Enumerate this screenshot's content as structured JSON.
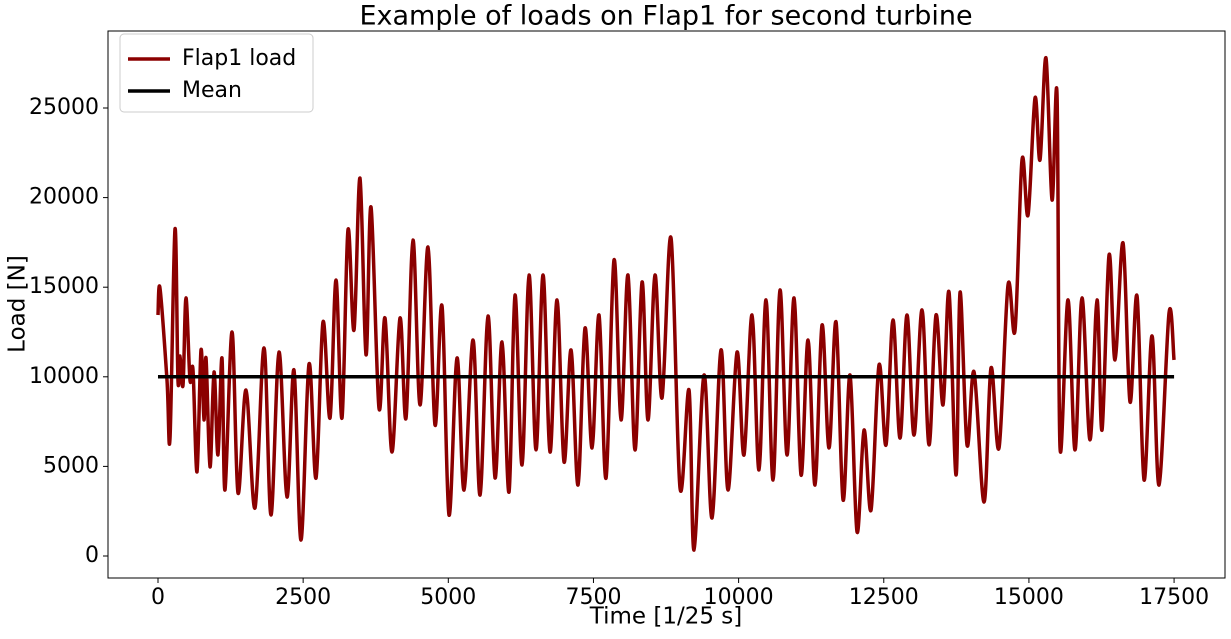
{
  "chart_data": {
    "type": "line",
    "title": "Example of loads on Flap1 for second turbine",
    "xlabel": "Time [1/25 s]",
    "ylabel": "Load [N]",
    "xlim": [
      -861,
      18377
    ],
    "ylim": [
      -1228,
      29297
    ],
    "xticks": [
      0,
      2500,
      5000,
      7500,
      10000,
      12500,
      15000,
      17500
    ],
    "yticks": [
      0,
      5000,
      10000,
      15000,
      20000,
      25000
    ],
    "grid": false,
    "legend": "upper left",
    "series": [
      {
        "name": "Flap1 load",
        "color": "#8b0000",
        "x": [
          0,
          34,
          155,
          207,
          293,
          344,
          379,
          431,
          482,
          551,
          603,
          672,
          741,
          792,
          827,
          896,
          965,
          1033,
          1102,
          1154,
          1275,
          1378,
          1516,
          1671,
          1826,
          1946,
          2084,
          2222,
          2342,
          2463,
          2601,
          2722,
          2842,
          2963,
          3066,
          3169,
          3272,
          3376,
          3479,
          3583,
          3669,
          3806,
          3910,
          4030,
          4168,
          4272,
          4392,
          4513,
          4650,
          4771,
          4892,
          5012,
          5150,
          5271,
          5426,
          5547,
          5684,
          5805,
          5925,
          6046,
          6149,
          6270,
          6391,
          6511,
          6632,
          6752,
          6873,
          6993,
          7114,
          7234,
          7355,
          7476,
          7596,
          7717,
          7854,
          7975,
          8095,
          8216,
          8337,
          8440,
          8560,
          8681,
          8836,
          8991,
          9146,
          9232,
          9404,
          9542,
          9697,
          9818,
          9973,
          10093,
          10231,
          10351,
          10472,
          10593,
          10713,
          10834,
          10955,
          11075,
          11196,
          11316,
          11437,
          11557,
          11678,
          11799,
          11919,
          12040,
          12160,
          12281,
          12418,
          12539,
          12659,
          12780,
          12900,
          13021,
          13159,
          13280,
          13400,
          13521,
          13624,
          13745,
          13814,
          13934,
          14055,
          14227,
          14347,
          14485,
          14640,
          14761,
          14881,
          14985,
          15105,
          15191,
          15294,
          15398,
          15484,
          15536,
          15673,
          15794,
          15914,
          16052,
          16173,
          16259,
          16380,
          16483,
          16621,
          16741,
          16862,
          16983,
          17120,
          17241,
          17413,
          17499
        ],
        "values": [
          13450,
          14950,
          9820,
          6580,
          18250,
          9820,
          11160,
          9540,
          14400,
          9820,
          10380,
          4690,
          11500,
          7590,
          11050,
          4970,
          10270,
          5640,
          11050,
          3680,
          12500,
          3520,
          9260,
          2680,
          11610,
          2290,
          11380,
          3290,
          10380,
          890,
          10710,
          4350,
          13060,
          7700,
          15400,
          7700,
          18190,
          12610,
          21090,
          11220,
          19470,
          8260,
          13280,
          5800,
          13280,
          7700,
          17630,
          8430,
          17240,
          7310,
          13950,
          2290,
          11050,
          3680,
          12050,
          3400,
          13390,
          4350,
          11940,
          3570,
          14560,
          5080,
          15680,
          5920,
          15680,
          5800,
          14290,
          5250,
          11500,
          3960,
          12720,
          6030,
          13450,
          4350,
          16520,
          7590,
          15680,
          5920,
          15290,
          7590,
          15680,
          8820,
          17750,
          3790,
          9260,
          330,
          10100,
          2120,
          11500,
          3680,
          11380,
          5640,
          13450,
          4800,
          14290,
          4240,
          14840,
          5640,
          14400,
          4520,
          12050,
          3960,
          12890,
          6030,
          13060,
          3130,
          10100,
          1340,
          7030,
          2570,
          10660,
          6200,
          13170,
          6580,
          13450,
          6750,
          13730,
          6200,
          13450,
          8430,
          14730,
          4520,
          14730,
          6200,
          10270,
          3010,
          10490,
          6030,
          15120,
          12610,
          22100,
          19030,
          25560,
          22100,
          27790,
          19870,
          25730,
          6030,
          14290,
          5920,
          14400,
          6480,
          14290,
          7030,
          16800,
          10940,
          17470,
          8600,
          14510,
          4240,
          12280,
          3960,
          13560,
          10940
        ]
      },
      {
        "name": "Mean",
        "color": "#000000",
        "x": [
          0,
          17500
        ],
        "values": [
          10000,
          10000
        ]
      }
    ]
  }
}
